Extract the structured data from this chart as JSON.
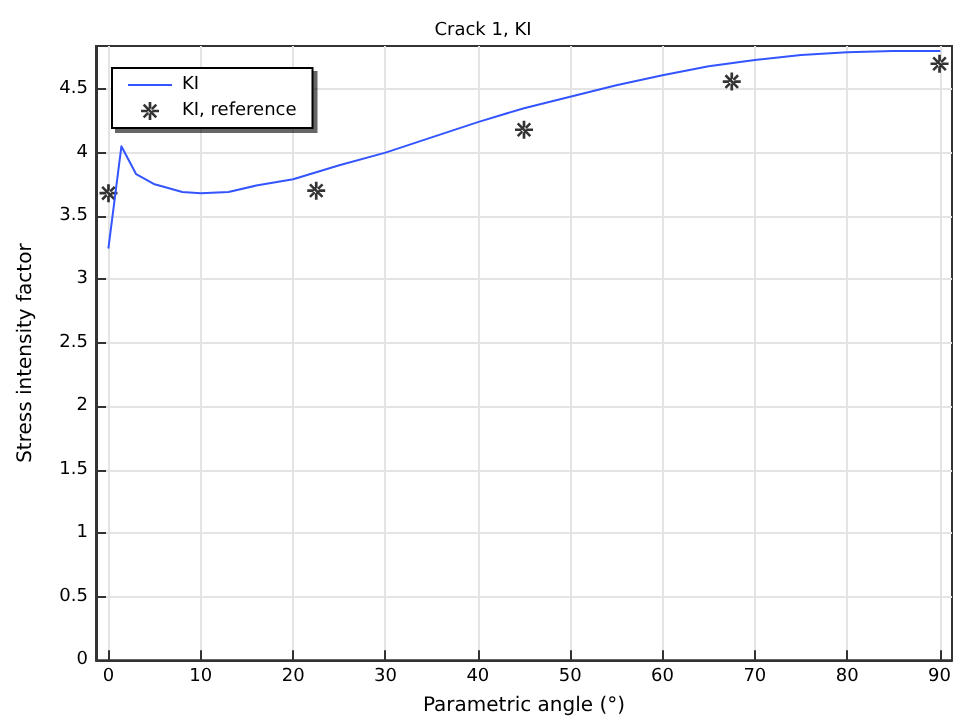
{
  "chart_data": {
    "type": "line",
    "title": "Crack 1, KI",
    "xlabel": "Parametric angle (°)",
    "ylabel": "Stress intensity factor",
    "xlim": [
      -1.35,
      91.35
    ],
    "ylim": [
      0,
      4.84
    ],
    "xticks": [
      0,
      10,
      20,
      30,
      40,
      50,
      60,
      70,
      80,
      90
    ],
    "yticks": [
      0,
      0.5,
      1,
      1.5,
      2,
      2.5,
      3,
      3.5,
      4,
      4.5
    ],
    "grid": true,
    "legend": "top left",
    "series": [
      {
        "name": "KI",
        "color": "#3355ff",
        "marker": "none",
        "line_style": "solid",
        "x": [
          0,
          1.4,
          3,
          5,
          8,
          10,
          13,
          16,
          20,
          25,
          30,
          35,
          40,
          45,
          50,
          55,
          60,
          65,
          70,
          75,
          80,
          85,
          90
        ],
        "values": [
          3.25,
          4.05,
          3.83,
          3.75,
          3.69,
          3.68,
          3.69,
          3.74,
          3.79,
          3.9,
          4.0,
          4.12,
          4.24,
          4.35,
          4.44,
          4.53,
          4.61,
          4.68,
          4.73,
          4.77,
          4.79,
          4.8,
          4.8
        ]
      },
      {
        "name": "KI, reference",
        "type": "scatter",
        "color": "#000000",
        "marker": "star",
        "x": [
          0,
          22.5,
          45,
          67.5,
          90
        ],
        "values": [
          3.68,
          3.7,
          4.18,
          4.56,
          4.7
        ]
      }
    ]
  }
}
